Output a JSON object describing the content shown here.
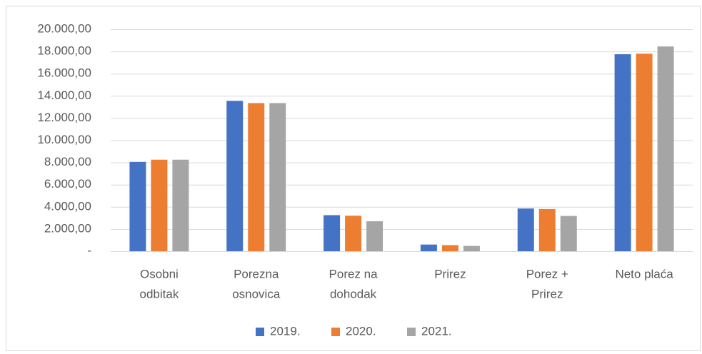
{
  "chart_data": {
    "type": "bar",
    "categories": [
      [
        "Osobni",
        "odbitak"
      ],
      [
        "Porezna",
        "osnovica"
      ],
      [
        "Porez na",
        "dohodak"
      ],
      [
        "Prirez"
      ],
      [
        "Porez +",
        "Prirez"
      ],
      [
        "Neto plaća"
      ]
    ],
    "series": [
      {
        "name": "2019.",
        "color": "#4472c4",
        "values": [
          8050,
          13550,
          3250,
          600,
          3850,
          17750
        ]
      },
      {
        "name": "2020.",
        "color": "#ed7d31",
        "values": [
          8250,
          13350,
          3200,
          550,
          3800,
          17800
        ]
      },
      {
        "name": "2021.",
        "color": "#a5a5a5",
        "values": [
          8250,
          13350,
          2700,
          480,
          3180,
          18450
        ]
      }
    ],
    "ylim": [
      0,
      20000
    ],
    "yticks": [
      {
        "value": 0,
        "label": "-"
      },
      {
        "value": 2000,
        "label": "2.000,00"
      },
      {
        "value": 4000,
        "label": "4.000,00"
      },
      {
        "value": 6000,
        "label": "6.000,00"
      },
      {
        "value": 8000,
        "label": "8.000,00"
      },
      {
        "value": 10000,
        "label": "10.000,00"
      },
      {
        "value": 12000,
        "label": "12.000,00"
      },
      {
        "value": 14000,
        "label": "14.000,00"
      },
      {
        "value": 16000,
        "label": "16.000,00"
      },
      {
        "value": 18000,
        "label": "18.000,00"
      },
      {
        "value": 20000,
        "label": "20.000,00"
      }
    ],
    "grid": true,
    "legend": "bottom"
  }
}
